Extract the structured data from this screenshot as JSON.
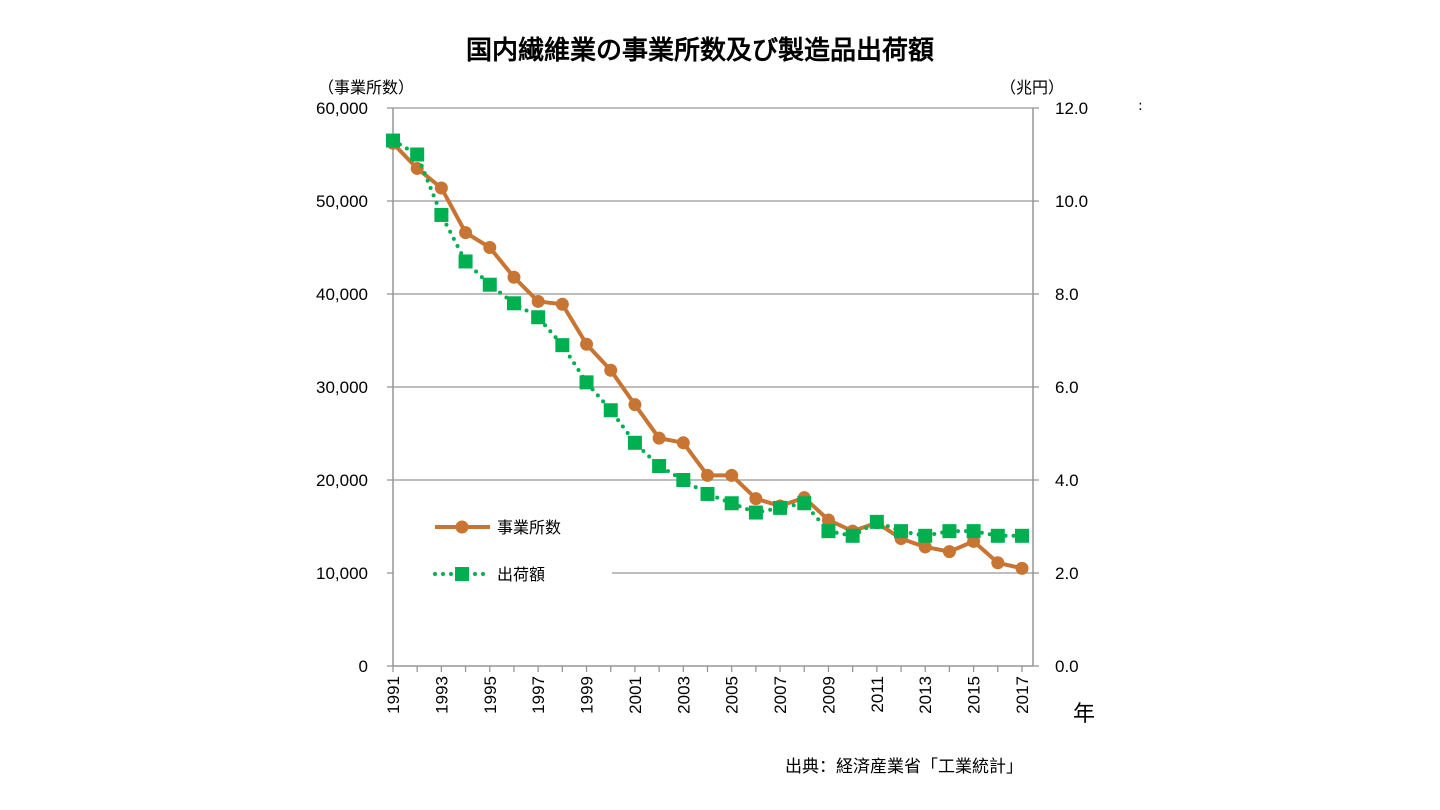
{
  "chart_data": {
    "type": "line",
    "title": "国内繊維業の事業所数及び製造品出荷額",
    "xlabel": "年",
    "ylabel_left": "（事業所数）",
    "ylabel_right": "（兆円）",
    "source": "出典：経済産業省「工業統計」",
    "stray_mark": ":",
    "x": [
      1991,
      1992,
      1993,
      1994,
      1995,
      1996,
      1997,
      1998,
      1999,
      2000,
      2001,
      2002,
      2003,
      2004,
      2005,
      2006,
      2007,
      2008,
      2009,
      2010,
      2011,
      2012,
      2013,
      2014,
      2015,
      2016,
      2017
    ],
    "x_tick_labels": [
      "1991",
      "1993",
      "1995",
      "1997",
      "1999",
      "2001",
      "2003",
      "2005",
      "2007",
      "2009",
      "2011",
      "2013",
      "2015",
      "2017"
    ],
    "ylim_left": [
      0,
      60000
    ],
    "ylim_right": [
      0,
      12
    ],
    "y_ticks_left": [
      "0",
      "10,000",
      "20,000",
      "30,000",
      "40,000",
      "50,000",
      "60,000"
    ],
    "y_ticks_right": [
      "0.0",
      "2.0",
      "4.0",
      "6.0",
      "8.0",
      "10.0",
      "12.0"
    ],
    "grid": true,
    "legend_position": "lower-left inside",
    "series": [
      {
        "name": "事業所数",
        "axis": "left",
        "color": "#C87533",
        "style": "solid-circle",
        "values": [
          56200,
          53500,
          51400,
          46600,
          45000,
          41800,
          39200,
          38900,
          34600,
          31800,
          28100,
          24500,
          24000,
          20500,
          20500,
          18000,
          17200,
          18100,
          15700,
          14500,
          15400,
          13700,
          12800,
          12300,
          13400,
          11100,
          10500
        ]
      },
      {
        "name": "出荷額",
        "axis": "right",
        "color": "#00B050",
        "style": "dotted-square",
        "values": [
          11.3,
          11.0,
          9.7,
          8.7,
          8.2,
          7.8,
          7.5,
          6.9,
          6.1,
          5.5,
          4.8,
          4.3,
          4.0,
          3.7,
          3.5,
          3.3,
          3.4,
          3.5,
          2.9,
          2.8,
          3.1,
          2.9,
          2.8,
          2.9,
          2.9,
          2.8,
          2.8
        ]
      }
    ]
  }
}
